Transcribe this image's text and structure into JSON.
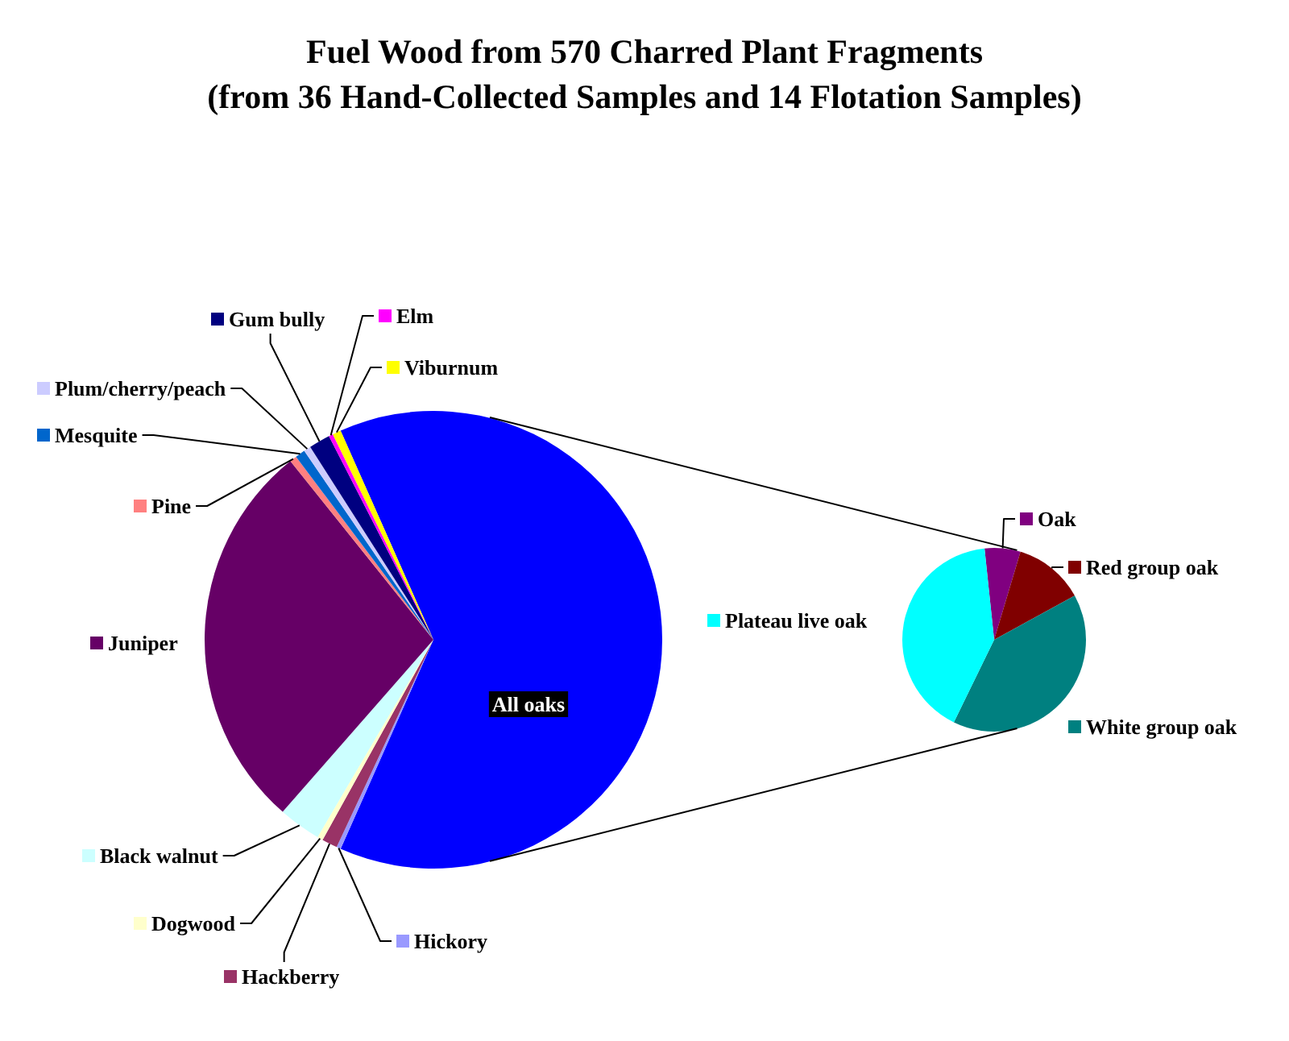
{
  "chart_data": [
    {
      "type": "pie",
      "title": "Fuel Wood from 570 Charred Plant Fragments",
      "subtitle": "(from 36 Hand-Collected Samples and 14 Flotation Samples)",
      "categories": [
        "All oaks",
        "Hickory",
        "Hackberry",
        "Dogwood",
        "Black walnut",
        "Juniper",
        "Pine",
        "Mesquite",
        "Plum/cherry/peach",
        "Gum bully",
        "Elm",
        "Viburnum"
      ],
      "values": [
        63.3,
        0.3,
        1.1,
        0.4,
        3.0,
        27.8,
        0.5,
        0.7,
        0.5,
        1.5,
        0.3,
        0.6
      ],
      "colors": [
        "#0000ff",
        "#9999ff",
        "#993366",
        "#ffffcc",
        "#ccffff",
        "#660066",
        "#ff8080",
        "#0066cc",
        "#ccccff",
        "#000080",
        "#ff00ff",
        "#ffff00"
      ],
      "legend": "left"
    },
    {
      "type": "pie",
      "categories": [
        "Oak",
        "Red group oak",
        "White group oak",
        "Plateau live oak"
      ],
      "values": [
        6.3,
        12.4,
        40.2,
        41.1
      ],
      "colors": [
        "#800080",
        "#800000",
        "#008080",
        "#00ffff"
      ],
      "legend": "top left"
    }
  ]
}
